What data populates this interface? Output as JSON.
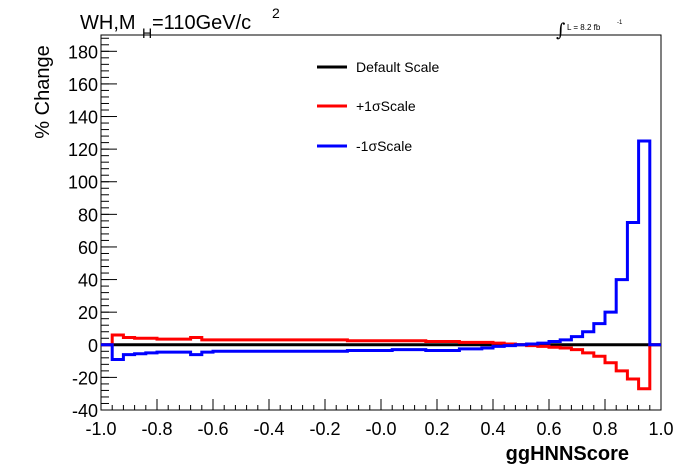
{
  "chart_data": {
    "type": "line",
    "title_parts": {
      "pre": "WH,M",
      "sub": "H",
      "post": "=110GeV/c",
      "sup": "2"
    },
    "lumi_label": {
      "main": "L = 8.2 fb",
      "sup": "-1"
    },
    "xlabel": "ggHNNScore",
    "ylabel": "% Change",
    "xlim": [
      -1.0,
      1.0
    ],
    "ylim": [
      -40,
      190
    ],
    "x_ticks": [
      -1.0,
      -0.8,
      -0.6,
      -0.4,
      -0.2,
      0.0,
      0.2,
      0.4,
      0.6,
      0.8,
      1.0
    ],
    "x_tick_labels": [
      "-1.0",
      "-0.8",
      "-0.6",
      "-0.4",
      "-0.2",
      "-0.0",
      "0.2",
      "0.4",
      "0.6",
      "0.8",
      "1.0"
    ],
    "y_ticks": [
      -40,
      -20,
      0,
      20,
      40,
      60,
      80,
      100,
      120,
      140,
      160,
      180
    ],
    "y_tick_labels": [
      "-40",
      "-20",
      "0",
      "20",
      "40",
      "60",
      "80",
      "100",
      "120",
      "140",
      "160",
      "180"
    ],
    "legend_position": "top-center",
    "bin_edges": [
      -1.0,
      -0.96,
      -0.92,
      -0.88,
      -0.84,
      -0.8,
      -0.76,
      -0.72,
      -0.68,
      -0.64,
      -0.6,
      -0.56,
      -0.52,
      -0.48,
      -0.44,
      -0.4,
      -0.36,
      -0.32,
      -0.28,
      -0.24,
      -0.2,
      -0.16,
      -0.12,
      -0.08,
      -0.04,
      0.0,
      0.04,
      0.08,
      0.12,
      0.16,
      0.2,
      0.24,
      0.28,
      0.32,
      0.36,
      0.4,
      0.44,
      0.48,
      0.52,
      0.56,
      0.6,
      0.64,
      0.68,
      0.72,
      0.76,
      0.8,
      0.84,
      0.88,
      0.92,
      0.96,
      1.0
    ],
    "series": [
      {
        "name": "Default Scale",
        "color": "#000000",
        "values": [
          0,
          0,
          0,
          0,
          0,
          0,
          0,
          0,
          0,
          0,
          0,
          0,
          0,
          0,
          0,
          0,
          0,
          0,
          0,
          0,
          0,
          0,
          0,
          0,
          0,
          0,
          0,
          0,
          0,
          0,
          0,
          0,
          0,
          0,
          0,
          0,
          0,
          0,
          0,
          0,
          0,
          0,
          0,
          0,
          0,
          0,
          0,
          0,
          0,
          0
        ]
      },
      {
        "name": "+1σScale",
        "color": "#ff0000",
        "values": [
          0,
          6,
          4.5,
          4,
          4,
          3.5,
          3.5,
          3.5,
          4.5,
          3,
          3,
          3,
          3,
          3,
          3,
          3,
          3,
          3,
          3,
          3,
          3,
          3,
          2.5,
          2.5,
          2.5,
          2.5,
          2.5,
          2.5,
          2.5,
          2,
          2,
          2,
          1.5,
          1.5,
          1.5,
          1,
          0.5,
          0,
          -0.5,
          -1,
          -1.5,
          -2,
          -3,
          -5,
          -7,
          -11,
          -16,
          -21,
          -27,
          0
        ]
      },
      {
        "name": "-1σScale",
        "color": "#0000ff",
        "values": [
          0,
          -9,
          -6,
          -5.5,
          -5,
          -4.5,
          -4.5,
          -4.5,
          -6,
          -4.5,
          -4,
          -4,
          -4,
          -4,
          -4,
          -4,
          -4,
          -4,
          -4,
          -4,
          -4,
          -4,
          -3.5,
          -3.5,
          -3.5,
          -3.5,
          -3,
          -3,
          -3,
          -3.5,
          -3.5,
          -3.5,
          -2.5,
          -2.5,
          -2,
          -1,
          -0.5,
          0,
          0.5,
          1,
          2,
          3,
          5,
          8,
          13,
          20,
          40,
          75,
          125,
          0
        ]
      }
    ]
  }
}
